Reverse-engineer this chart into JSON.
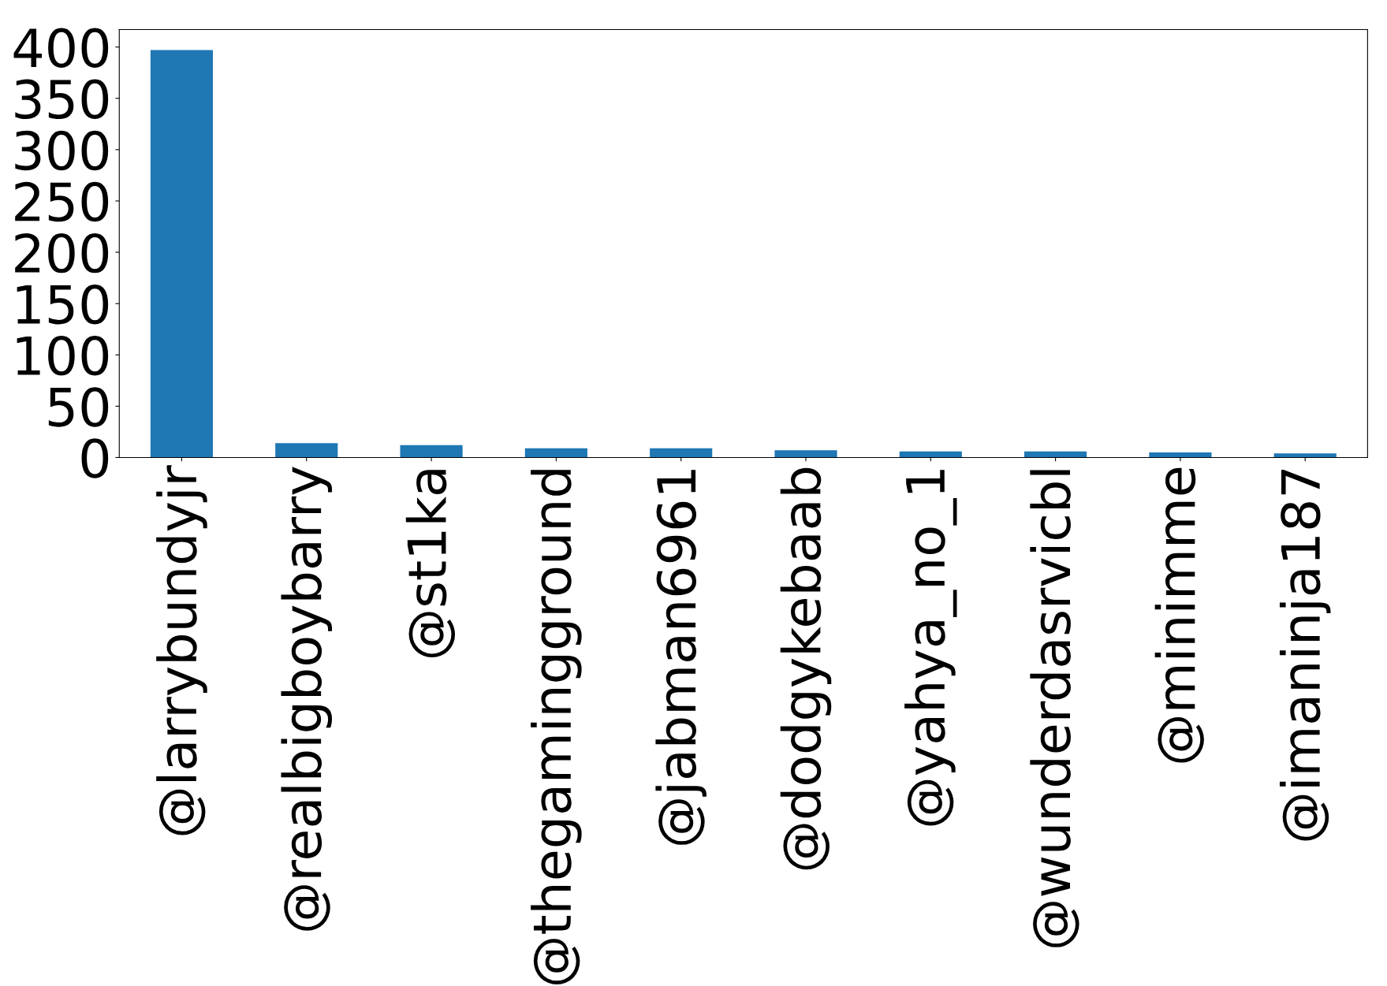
{
  "chart_data": {
    "type": "bar",
    "categories": [
      "@larrybundyjr",
      "@realbigboybarry",
      "@st1ka",
      "@thegamingground",
      "@jabman6961",
      "@dodgykebaab",
      "@yahya_no_1",
      "@wunderdasrvicbl",
      "@minimme",
      "@imaninja187"
    ],
    "values": [
      397,
      14,
      12,
      9,
      9,
      7,
      6,
      6,
      5,
      4
    ],
    "color": "#1f77b4",
    "ylim": [
      0,
      417
    ],
    "yticks": [
      0,
      50,
      100,
      150,
      200,
      250,
      300,
      350,
      400
    ],
    "grid": false,
    "legend": false
  }
}
